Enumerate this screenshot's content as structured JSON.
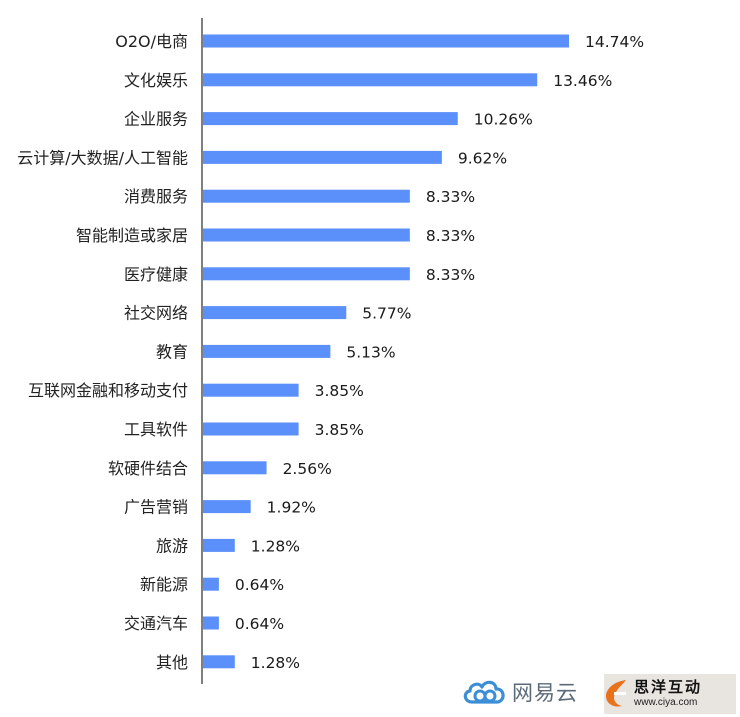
{
  "chart_data": {
    "type": "bar",
    "orientation": "horizontal",
    "categories": [
      "O2O/电商",
      "文化娱乐",
      "企业服务",
      "云计算/大数据/人工智能",
      "消费服务",
      "智能制造或家居",
      "医疗健康",
      "社交网络",
      "教育",
      "互联网金融和移动支付",
      "工具软件",
      "软硬件结合",
      "广告营销",
      "旅游",
      "新能源",
      "交通汽车",
      "其他"
    ],
    "values": [
      14.74,
      13.46,
      10.26,
      9.62,
      8.33,
      8.33,
      8.33,
      5.77,
      5.13,
      3.85,
      3.85,
      2.56,
      1.92,
      1.28,
      0.64,
      0.64,
      1.28
    ],
    "value_labels": [
      "14.74%",
      "13.46%",
      "10.26%",
      "9.62%",
      "8.33%",
      "8.33%",
      "8.33%",
      "5.77%",
      "5.13%",
      "3.85%",
      "3.85%",
      "2.56%",
      "1.92%",
      "1.28%",
      "0.64%",
      "0.64%",
      "1.28%"
    ],
    "bar_color": "#5b8ff9",
    "grid": false,
    "xlim": [
      0,
      14.74
    ]
  },
  "logos": {
    "netease_text": "网易云",
    "ciya_title": "思洋互动",
    "ciya_url": "www.ciya.com"
  }
}
